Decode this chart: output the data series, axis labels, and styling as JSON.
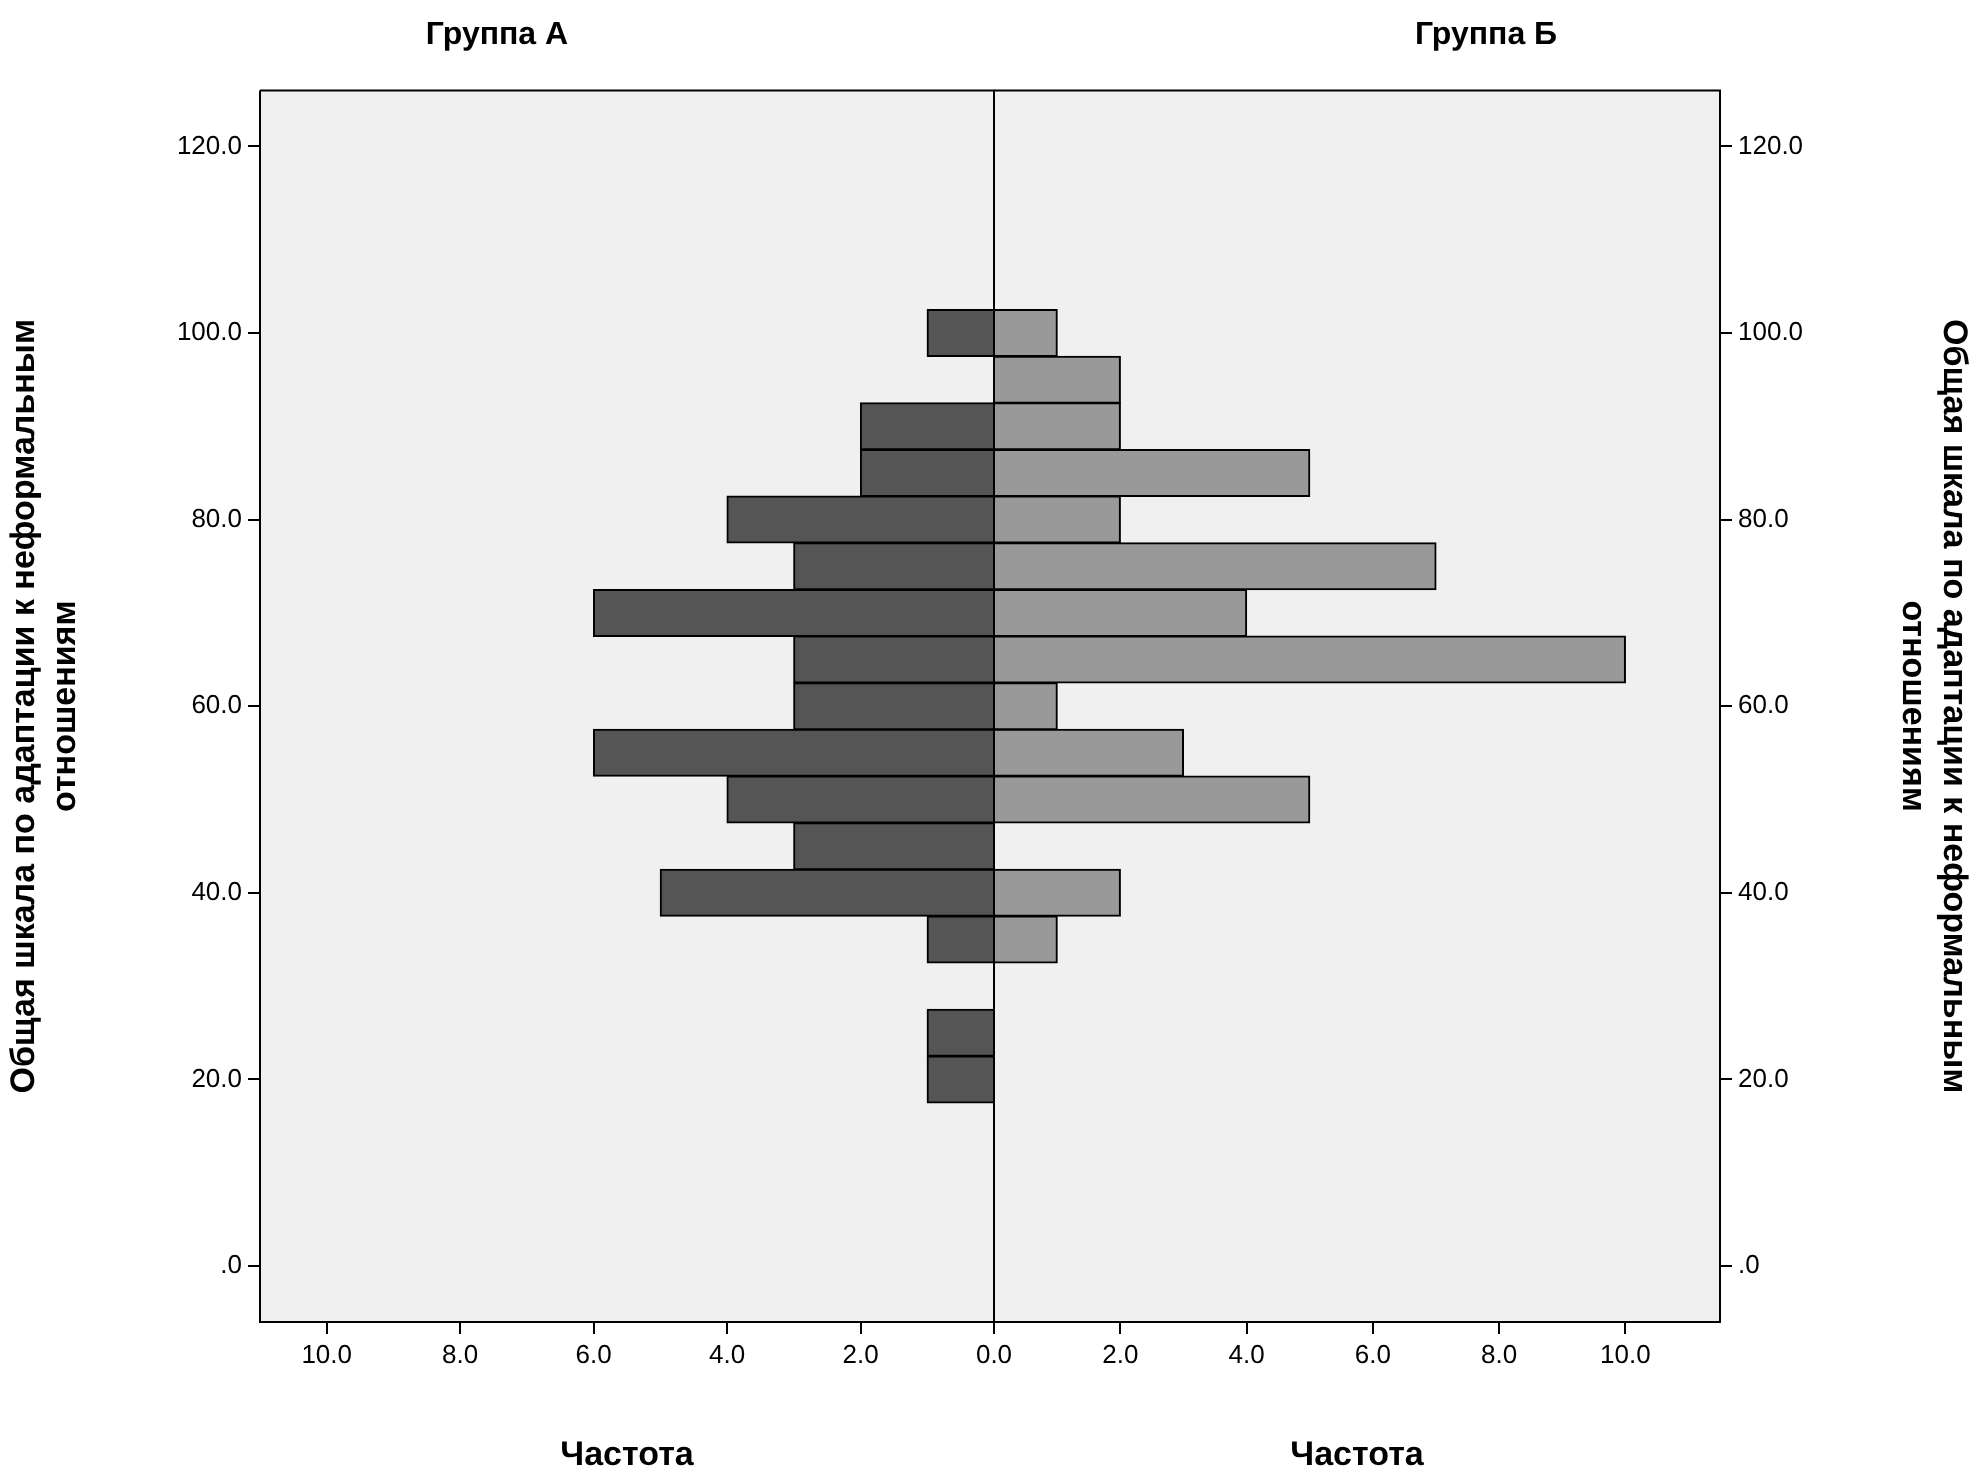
{
  "chart_data": [
    {
      "type": "histogram",
      "orientation": "horizontal",
      "title": "Группа А",
      "xlabel": "Частота",
      "ylabel": "Общая шкала по адаптации к неформальным отношениям",
      "color": "#555555",
      "bins": [
        17.5,
        22.5,
        27.5,
        32.5,
        37.5,
        42.5,
        47.5,
        52.5,
        57.5,
        62.5,
        67.5,
        72.5,
        77.5,
        82.5,
        87.5,
        92.5,
        97.5,
        102.5
      ],
      "values": [
        1,
        1,
        0,
        1,
        5,
        3,
        4,
        6,
        3,
        3,
        6,
        3,
        4,
        2,
        2,
        0,
        1
      ],
      "xlim": [
        11,
        0
      ],
      "xticks": [
        {
          "value": 10,
          "label": "10.0"
        },
        {
          "value": 8,
          "label": "8.0"
        },
        {
          "value": 6,
          "label": "6.0"
        },
        {
          "value": 4,
          "label": "4.0"
        },
        {
          "value": 2,
          "label": "2.0"
        },
        {
          "value": 0,
          "label": "0.0"
        }
      ],
      "ylim": [
        -6,
        126
      ],
      "yticks": [
        {
          "value": 0,
          "label": ".0"
        },
        {
          "value": 20,
          "label": "20.0"
        },
        {
          "value": 40,
          "label": "40.0"
        },
        {
          "value": 60,
          "label": "60.0"
        },
        {
          "value": 80,
          "label": "80.0"
        },
        {
          "value": 100,
          "label": "100.0"
        },
        {
          "value": 120,
          "label": "120.0"
        }
      ],
      "grid": false
    },
    {
      "type": "histogram",
      "orientation": "horizontal",
      "title": "Группа Б",
      "xlabel": "Частота",
      "ylabel": "Общая шкала по адаптации к неформальным отношениям",
      "color": "#999999",
      "bins": [
        17.5,
        22.5,
        27.5,
        32.5,
        37.5,
        42.5,
        47.5,
        52.5,
        57.5,
        62.5,
        67.5,
        72.5,
        77.5,
        82.5,
        87.5,
        92.5,
        97.5,
        102.5
      ],
      "values": [
        0,
        0,
        0,
        1,
        2,
        0,
        5,
        3,
        1,
        10,
        4,
        7,
        2,
        5,
        2,
        2,
        1
      ],
      "xlim": [
        0,
        11.5
      ],
      "xticks": [
        {
          "value": 0,
          "label": null
        },
        {
          "value": 2,
          "label": "2.0"
        },
        {
          "value": 4,
          "label": "4.0"
        },
        {
          "value": 6,
          "label": "6.0"
        },
        {
          "value": 8,
          "label": "8.0"
        },
        {
          "value": 10,
          "label": "10.0"
        }
      ],
      "ylim": [
        -6,
        126
      ],
      "yticks": [
        {
          "value": 0,
          "label": ".0"
        },
        {
          "value": 20,
          "label": "20.0"
        },
        {
          "value": 40,
          "label": "40.0"
        },
        {
          "value": 60,
          "label": "60.0"
        },
        {
          "value": 80,
          "label": "80.0"
        },
        {
          "value": 100,
          "label": "100.0"
        },
        {
          "value": 120,
          "label": "120.0"
        }
      ],
      "grid": false
    }
  ]
}
